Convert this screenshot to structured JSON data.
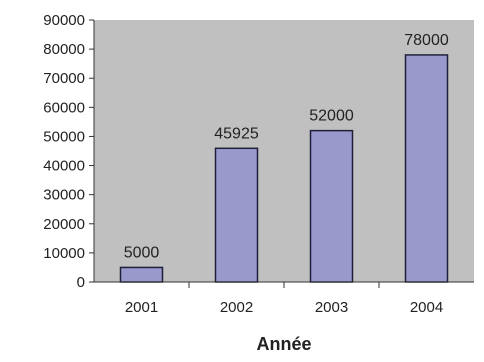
{
  "chart_data": {
    "type": "bar",
    "title": "",
    "xlabel": "Année",
    "ylabel": "",
    "categories": [
      "2001",
      "2002",
      "2003",
      "2004"
    ],
    "values": [
      5000,
      45925,
      52000,
      78000
    ],
    "data_labels": [
      "5000",
      "45925",
      "52000",
      "78000"
    ],
    "ylim": [
      0,
      90000
    ],
    "yticks": [
      0,
      10000,
      20000,
      30000,
      40000,
      50000,
      60000,
      70000,
      80000,
      90000
    ],
    "ytick_labels": [
      "0",
      "10000",
      "20000",
      "30000",
      "40000",
      "50000",
      "60000",
      "70000",
      "80000",
      "90000"
    ],
    "grid": false,
    "legend": "none",
    "colors": {
      "plot_background": "#c0c0c0",
      "bar_fill": "#9999cc",
      "bar_stroke": "#1f1f3a",
      "axis": "#333333"
    }
  }
}
